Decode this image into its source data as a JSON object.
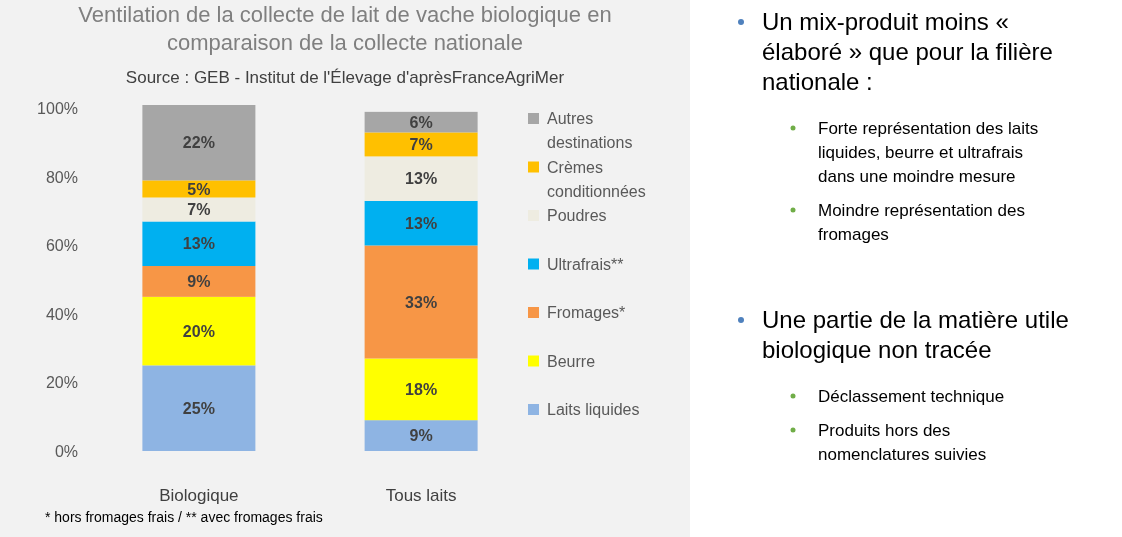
{
  "chart_data": [
    {
      "type": "bar",
      "stacked": true,
      "title": "Ventilation de la collecte de lait de vache biologique en comparaison de la collecte nationale",
      "subtitle": "Source : GEB - Institut de l'Élevage d'aprèsFranceAgriMer",
      "categories": [
        "Biologique",
        "Tous laits"
      ],
      "ylim": [
        0,
        101
      ],
      "yticks": [
        {
          "value": 0,
          "label": "0%"
        },
        {
          "value": 20,
          "label": "20%"
        },
        {
          "value": 40,
          "label": "40%"
        },
        {
          "value": 60,
          "label": "60%"
        },
        {
          "value": 80,
          "label": "80%"
        },
        {
          "value": 100,
          "label": "100%"
        }
      ],
      "grid": false,
      "legend": "right",
      "annotations": [
        "* hors fromages frais  / ** avec fromages frais"
      ],
      "series": [
        {
          "name": "Laits liquides",
          "color": "#8eb4e3",
          "values": [
            25,
            9
          ],
          "value_labels": [
            "25%",
            "9%"
          ]
        },
        {
          "name": "Beurre",
          "color": "#ffff00",
          "values": [
            20,
            18
          ],
          "value_labels": [
            "20%",
            "18%"
          ]
        },
        {
          "name": "Fromages*",
          "color": "#f79646",
          "values": [
            9,
            33
          ],
          "value_labels": [
            "9%",
            "33%"
          ]
        },
        {
          "name": "Ultrafrais**",
          "color": "#00b0f0",
          "values": [
            13,
            13
          ],
          "value_labels": [
            "13%",
            "13%"
          ]
        },
        {
          "name": "Poudres",
          "color": "#eeece1",
          "values": [
            7,
            13
          ],
          "value_labels": [
            "7%",
            "13%"
          ]
        },
        {
          "name": "Crèmes conditionnées",
          "color": "#ffc000",
          "values": [
            5,
            7
          ],
          "value_labels": [
            "5%",
            "7%"
          ]
        },
        {
          "name": "Autres destinations",
          "color": "#a6a6a6",
          "values": [
            22,
            6
          ],
          "value_labels": [
            "22%",
            "6%"
          ]
        }
      ]
    },
    {
      "type": "other",
      "title": "Un mix-produit moins « élaboré » que pour la filière nationale :",
      "annotations": [
        "Forte représentation des laits liquides, beurre et ultrafrais dans une moindre mesure",
        "Moindre représentation des fromages"
      ]
    },
    {
      "type": "other",
      "title": "Une partie de la matière utile biologique non tracée",
      "annotations": [
        "Déclassement technique",
        "Produits hors des nomenclatures suivies"
      ]
    }
  ]
}
